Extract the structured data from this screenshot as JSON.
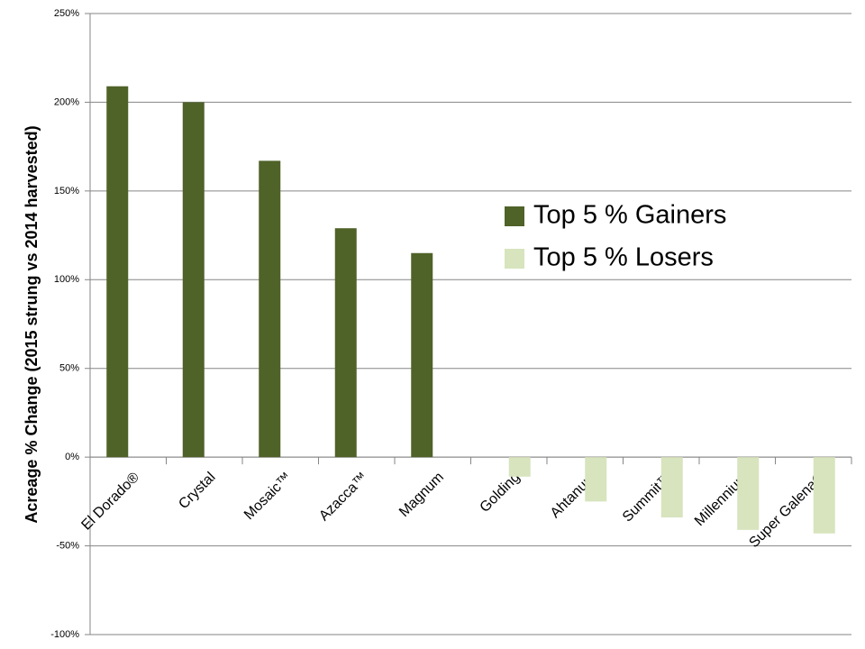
{
  "chart_data": {
    "type": "bar",
    "y_label": "Acreage % Change (2015 strung vs 2014 harvested)",
    "categories": [
      "El Dorado®",
      "Crystal",
      "Mosaic™",
      "Azacca™",
      "Magnum",
      "Golding",
      "Ahtanum",
      "Summit™",
      "Millennium",
      "Super Galena®"
    ],
    "series": [
      {
        "name": "Top 5 % Gainers",
        "color": "#4f6228",
        "values": [
          209,
          200,
          167,
          129,
          115,
          null,
          null,
          null,
          null,
          null
        ]
      },
      {
        "name": "Top 5 % Losers",
        "color": "#d7e4bd",
        "values": [
          null,
          null,
          null,
          null,
          null,
          -11,
          -25,
          -34,
          -41,
          -43
        ]
      }
    ],
    "ylim": [
      -100,
      250
    ],
    "yticks": [
      {
        "value": -100,
        "label": "-100%"
      },
      {
        "value": -50,
        "label": "-50%"
      },
      {
        "value": 0,
        "label": "0%"
      },
      {
        "value": 50,
        "label": "50%"
      },
      {
        "value": 100,
        "label": "100%"
      },
      {
        "value": 150,
        "label": "150%"
      },
      {
        "value": 200,
        "label": "200%"
      },
      {
        "value": 250,
        "label": "250%"
      }
    ],
    "grid": true,
    "legend": "right"
  }
}
